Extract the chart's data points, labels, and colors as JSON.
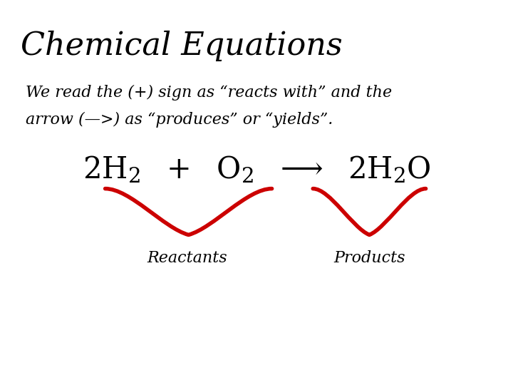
{
  "title": "Chemical Equations",
  "subtitle_line1": "We read the (+) sign as “reacts with” and the",
  "subtitle_line2": "arrow (—>) as “produces” or “yields”.",
  "equation": "2H₂  +  O₂  —>  2H₂O",
  "reactants_label": "Reactants",
  "products_label": "Products",
  "bg_color": "#ffffff",
  "text_color": "#000000",
  "brace_color": "#cc0000",
  "title_fontsize": 32,
  "subtitle_fontsize": 16,
  "equation_fontsize": 30,
  "label_fontsize": 16
}
